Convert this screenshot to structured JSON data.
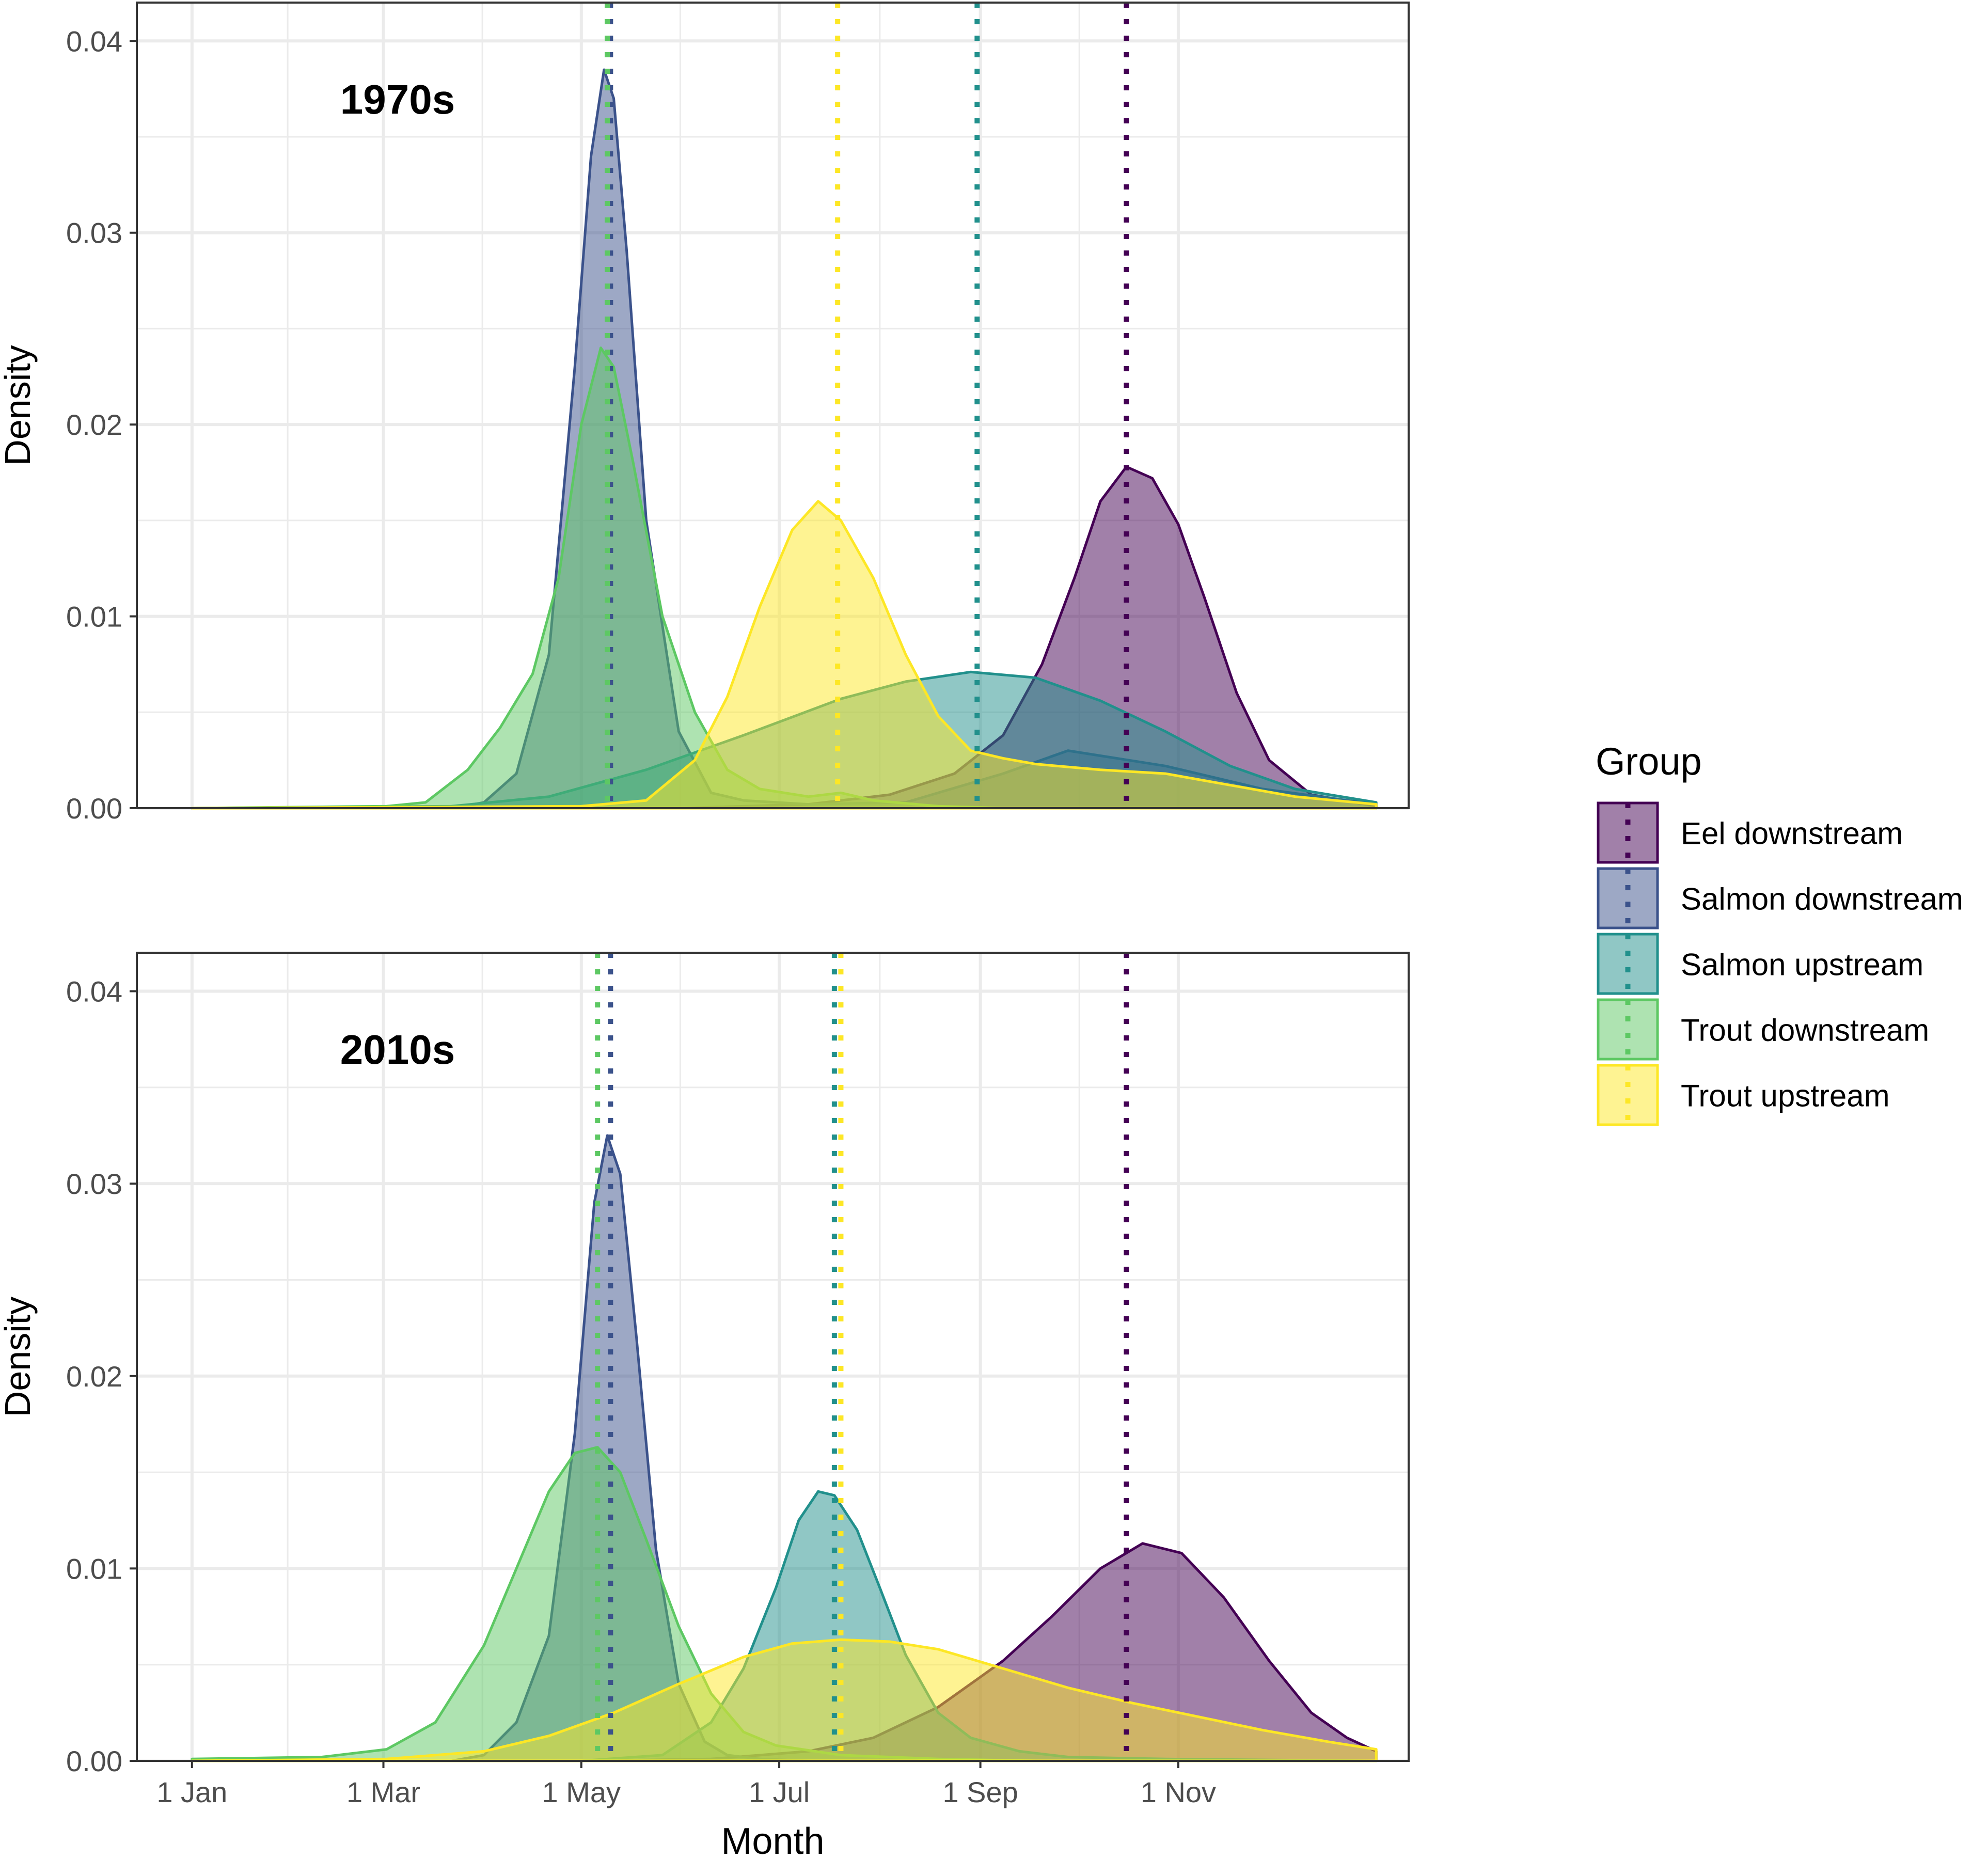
{
  "chart_data": [
    {
      "type": "area",
      "subtype": "density",
      "title": "1970s",
      "xlabel": "",
      "ylabel": "Density",
      "ylim": [
        0,
        0.042
      ],
      "yticks": [
        0.0,
        0.01,
        0.02,
        0.03,
        0.04
      ],
      "ytick_labels": [
        "0.00",
        "0.01",
        "0.02",
        "0.03",
        "0.04"
      ],
      "grid": true,
      "series": [
        {
          "name": "Eel downstream",
          "mean_day": 288,
          "x": [
            0,
            150,
            190,
            215,
            235,
            250,
            262,
            272,
            280,
            288,
            296,
            304,
            312,
            322,
            332,
            345,
            365
          ],
          "y": [
            0.0,
            0.0,
            0.0002,
            0.0007,
            0.0018,
            0.0038,
            0.0075,
            0.012,
            0.016,
            0.0178,
            0.0172,
            0.0148,
            0.011,
            0.006,
            0.0025,
            0.0007,
            0.0001
          ]
        },
        {
          "name": "Salmon downstream",
          "mean_day": 129,
          "x": [
            0,
            80,
            90,
            100,
            110,
            118,
            123,
            127,
            130,
            134,
            140,
            150,
            160,
            170,
            190,
            220,
            250,
            270,
            300,
            330,
            365
          ],
          "y": [
            0.0,
            0.0,
            0.0003,
            0.0018,
            0.008,
            0.023,
            0.034,
            0.0385,
            0.037,
            0.029,
            0.015,
            0.004,
            0.0008,
            0.0004,
            0.0002,
            0.0003,
            0.0018,
            0.003,
            0.0022,
            0.001,
            0.0002
          ]
        },
        {
          "name": "Salmon upstream",
          "mean_day": 242,
          "x": [
            0,
            80,
            110,
            140,
            170,
            200,
            220,
            240,
            260,
            280,
            300,
            320,
            340,
            365
          ],
          "y": [
            0.0,
            0.0001,
            0.0006,
            0.002,
            0.0038,
            0.0057,
            0.0066,
            0.0071,
            0.0068,
            0.0056,
            0.004,
            0.0022,
            0.001,
            0.0003
          ]
        },
        {
          "name": "Trout downstream",
          "mean_day": 128,
          "x": [
            0,
            60,
            72,
            85,
            95,
            105,
            113,
            120,
            126,
            130,
            136,
            145,
            155,
            165,
            175,
            190,
            200,
            210,
            230,
            250,
            300,
            365
          ],
          "y": [
            0.0,
            0.0001,
            0.0003,
            0.002,
            0.0042,
            0.007,
            0.012,
            0.02,
            0.024,
            0.023,
            0.018,
            0.01,
            0.005,
            0.002,
            0.001,
            0.0006,
            0.0008,
            0.0004,
            0.0001,
            0.0,
            0.0,
            0.0
          ]
        },
        {
          "name": "Trout upstream",
          "mean_day": 199,
          "x": [
            0,
            120,
            140,
            155,
            165,
            175,
            185,
            193,
            200,
            210,
            220,
            230,
            240,
            250,
            260,
            280,
            300,
            320,
            340,
            365
          ],
          "y": [
            0.0,
            0.0001,
            0.0004,
            0.0025,
            0.0058,
            0.0105,
            0.0145,
            0.016,
            0.015,
            0.012,
            0.008,
            0.0048,
            0.003,
            0.0026,
            0.0023,
            0.002,
            0.0018,
            0.0012,
            0.0006,
            0.0002
          ]
        }
      ]
    },
    {
      "type": "area",
      "subtype": "density",
      "title": "2010s",
      "xlabel": "Month",
      "ylabel": "Density",
      "ylim": [
        0,
        0.042
      ],
      "yticks": [
        0.0,
        0.01,
        0.02,
        0.03,
        0.04
      ],
      "ytick_labels": [
        "0.00",
        "0.01",
        "0.02",
        "0.03",
        "0.04"
      ],
      "xticks": [
        0,
        59,
        120,
        181,
        243,
        304
      ],
      "xtick_labels": [
        "1 Jan",
        "1 Mar",
        "1 May",
        "1 Jul",
        "1 Sep",
        "1 Nov"
      ],
      "grid": true,
      "series": [
        {
          "name": "Eel downstream",
          "mean_day": 288,
          "x": [
            0,
            120,
            160,
            190,
            210,
            230,
            250,
            265,
            280,
            293,
            305,
            318,
            332,
            345,
            356,
            365
          ],
          "y": [
            0.0,
            0.0,
            0.0001,
            0.0005,
            0.0012,
            0.0028,
            0.0052,
            0.0075,
            0.01,
            0.0113,
            0.0108,
            0.0085,
            0.0052,
            0.0025,
            0.0012,
            0.0005
          ]
        },
        {
          "name": "Salmon downstream",
          "mean_day": 129,
          "x": [
            0,
            80,
            90,
            100,
            110,
            118,
            124,
            128,
            132,
            137,
            143,
            150,
            158,
            165,
            175,
            190,
            365
          ],
          "y": [
            0.0,
            0.0,
            0.0003,
            0.002,
            0.0065,
            0.017,
            0.029,
            0.0325,
            0.0305,
            0.022,
            0.011,
            0.004,
            0.001,
            0.0003,
            0.0001,
            0.0,
            0.0
          ]
        },
        {
          "name": "Salmon upstream",
          "mean_day": 198,
          "x": [
            0,
            120,
            145,
            160,
            170,
            180,
            187,
            193,
            198,
            205,
            212,
            220,
            230,
            240,
            255,
            270,
            300,
            365
          ],
          "y": [
            0.0,
            0.0,
            0.0003,
            0.002,
            0.0048,
            0.009,
            0.0125,
            0.014,
            0.0138,
            0.012,
            0.009,
            0.0055,
            0.0025,
            0.0012,
            0.0005,
            0.0002,
            0.0001,
            0.0
          ]
        },
        {
          "name": "Trout downstream",
          "mean_day": 125,
          "x": [
            0,
            40,
            60,
            75,
            90,
            100,
            110,
            118,
            125,
            132,
            140,
            150,
            160,
            170,
            180,
            200,
            230,
            260,
            300,
            365
          ],
          "y": [
            0.0001,
            0.0002,
            0.0006,
            0.002,
            0.006,
            0.01,
            0.014,
            0.016,
            0.0163,
            0.015,
            0.0115,
            0.007,
            0.0035,
            0.0015,
            0.0008,
            0.0003,
            0.0001,
            0.0,
            0.0,
            0.0
          ]
        },
        {
          "name": "Trout upstream",
          "mean_day": 200,
          "x": [
            0,
            60,
            90,
            110,
            130,
            150,
            170,
            185,
            200,
            215,
            230,
            250,
            270,
            290,
            310,
            330,
            350,
            365
          ],
          "y": [
            0.0,
            0.0001,
            0.0005,
            0.0013,
            0.0025,
            0.004,
            0.0054,
            0.0061,
            0.0063,
            0.0062,
            0.0058,
            0.0048,
            0.0038,
            0.003,
            0.0023,
            0.0016,
            0.001,
            0.0006
          ]
        }
      ]
    }
  ],
  "legend": {
    "title": "Group",
    "items": [
      "Eel downstream",
      "Salmon downstream",
      "Salmon upstream",
      "Trout downstream",
      "Trout upstream"
    ]
  },
  "colors": {
    "Eel downstream": "#440154",
    "Salmon downstream": "#3B528B",
    "Salmon upstream": "#21908C",
    "Trout downstream": "#5DC863",
    "Trout upstream": "#FDE725",
    "grid": "#EBEBEB",
    "panel_border": "#333333",
    "tick_text": "#4D4D4D"
  }
}
